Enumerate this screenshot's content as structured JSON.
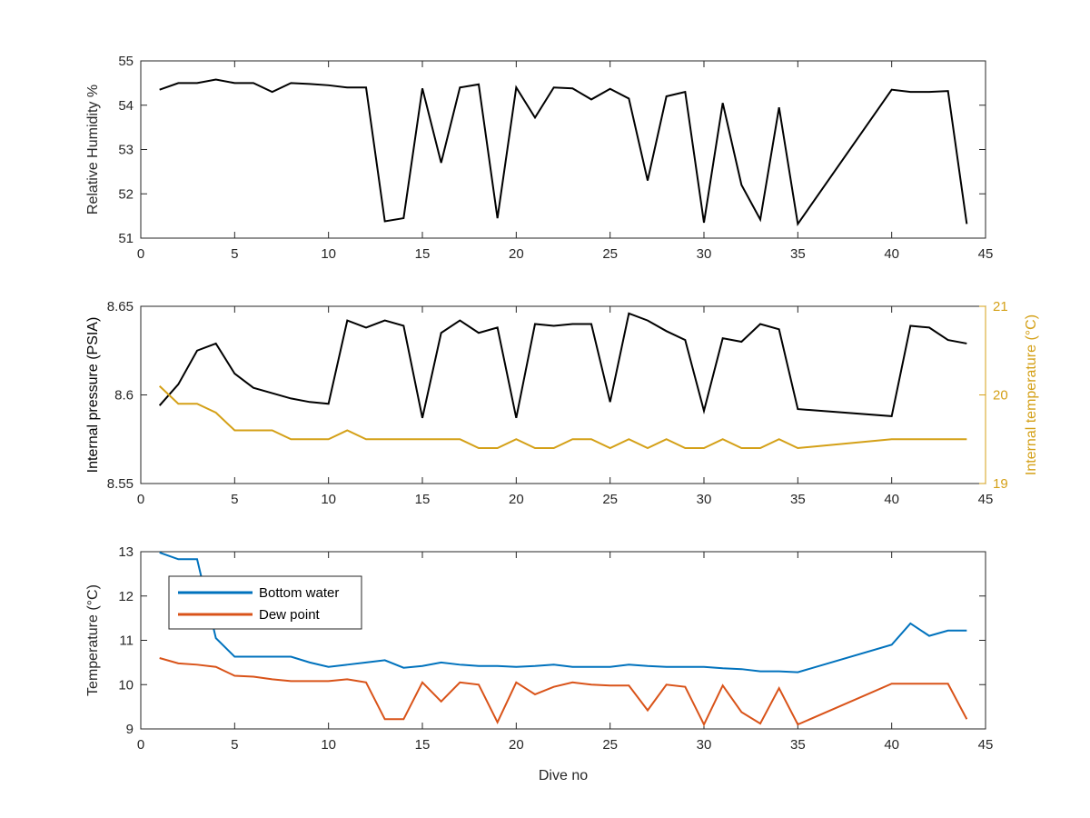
{
  "chart_data": [
    {
      "type": "line",
      "xlabel": "",
      "ylabel": "Relative Humidity %",
      "xlim": [
        0,
        45
      ],
      "ylim": [
        51,
        55
      ],
      "xticks": [
        "0",
        "5",
        "10",
        "15",
        "20",
        "25",
        "30",
        "35",
        "40",
        "45"
      ],
      "yticks": [
        "51",
        "52",
        "53",
        "54",
        "55"
      ],
      "grid": false,
      "series": [
        {
          "color": "#000000",
          "x": [
            1,
            2,
            3,
            4,
            5,
            6,
            7,
            8,
            9,
            10,
            11,
            12,
            13,
            14,
            15,
            16,
            17,
            18,
            19,
            20,
            21,
            22,
            23,
            24,
            25,
            26,
            27,
            28,
            29,
            30,
            31,
            32,
            33,
            34,
            35,
            40,
            41,
            42,
            43,
            44
          ],
          "y": [
            54.35,
            54.5,
            54.5,
            54.58,
            54.5,
            54.5,
            54.3,
            54.5,
            54.48,
            54.45,
            54.4,
            54.4,
            51.38,
            51.45,
            54.38,
            52.7,
            54.4,
            54.47,
            51.45,
            54.4,
            53.72,
            54.4,
            54.38,
            54.13,
            54.37,
            54.15,
            52.3,
            54.2,
            54.3,
            51.35,
            54.05,
            52.2,
            51.42,
            53.95,
            51.32,
            54.35,
            54.3,
            54.3,
            54.32,
            51.32
          ]
        }
      ]
    },
    {
      "type": "line",
      "xlabel": "",
      "ylabel": "Internal pressure (PSIA)",
      "ylabel_right": "Internal temperature (°C)",
      "xlim": [
        0,
        45
      ],
      "ylim": [
        8.55,
        8.65
      ],
      "ylim_right": [
        19,
        21
      ],
      "xticks": [
        "0",
        "5",
        "10",
        "15",
        "20",
        "25",
        "30",
        "35",
        "40",
        "45"
      ],
      "yticks": [
        "8.55",
        "8.6",
        "8.65"
      ],
      "yticks_right": [
        "19",
        "20",
        "21"
      ],
      "right_axis_color": "#D4A017",
      "grid": false,
      "series": [
        {
          "axis": "left",
          "color": "#000000",
          "x": [
            1,
            2,
            3,
            4,
            5,
            6,
            7,
            8,
            9,
            10,
            11,
            12,
            13,
            14,
            15,
            16,
            17,
            18,
            19,
            20,
            21,
            22,
            23,
            24,
            25,
            26,
            27,
            28,
            29,
            30,
            31,
            32,
            33,
            34,
            35,
            40,
            41,
            42,
            43,
            44
          ],
          "y": [
            8.594,
            8.606,
            8.625,
            8.629,
            8.612,
            8.604,
            8.601,
            8.598,
            8.596,
            8.595,
            8.642,
            8.638,
            8.642,
            8.639,
            8.587,
            8.635,
            8.642,
            8.635,
            8.638,
            8.587,
            8.64,
            8.639,
            8.64,
            8.64,
            8.596,
            8.646,
            8.642,
            8.636,
            8.631,
            8.591,
            8.632,
            8.63,
            8.64,
            8.637,
            8.592,
            8.588,
            8.639,
            8.638,
            8.631,
            8.629
          ]
        },
        {
          "axis": "right",
          "color": "#D4A017",
          "x": [
            1,
            2,
            3,
            4,
            5,
            6,
            7,
            8,
            9,
            10,
            11,
            12,
            13,
            14,
            15,
            16,
            17,
            18,
            19,
            20,
            21,
            22,
            23,
            24,
            25,
            26,
            27,
            28,
            29,
            30,
            31,
            32,
            33,
            34,
            35,
            40,
            41,
            42,
            43,
            44
          ],
          "y": [
            20.1,
            19.9,
            19.9,
            19.8,
            19.6,
            19.6,
            19.6,
            19.5,
            19.5,
            19.5,
            19.6,
            19.5,
            19.5,
            19.5,
            19.5,
            19.5,
            19.5,
            19.4,
            19.4,
            19.5,
            19.4,
            19.4,
            19.5,
            19.5,
            19.4,
            19.5,
            19.4,
            19.5,
            19.4,
            19.4,
            19.5,
            19.4,
            19.4,
            19.5,
            19.4,
            19.5,
            19.5,
            19.5,
            19.5,
            19.5
          ]
        }
      ]
    },
    {
      "type": "line",
      "xlabel": "Dive no",
      "ylabel": "Temperature (°C)",
      "xlim": [
        0,
        45
      ],
      "ylim": [
        9,
        13
      ],
      "xticks": [
        "0",
        "5",
        "10",
        "15",
        "20",
        "25",
        "30",
        "35",
        "40",
        "45"
      ],
      "yticks": [
        "9",
        "10",
        "11",
        "12",
        "13"
      ],
      "grid": false,
      "legend": "top-left",
      "series": [
        {
          "name": "Bottom water",
          "color": "#0072BD",
          "x": [
            1,
            2,
            3,
            4,
            5,
            6,
            7,
            8,
            9,
            10,
            11,
            12,
            13,
            14,
            15,
            16,
            17,
            18,
            19,
            20,
            21,
            22,
            23,
            24,
            25,
            26,
            27,
            28,
            29,
            30,
            31,
            32,
            33,
            34,
            35,
            40,
            41,
            42,
            43,
            44
          ],
          "y": [
            12.98,
            12.83,
            12.83,
            11.05,
            10.63,
            10.63,
            10.63,
            10.63,
            10.5,
            10.4,
            10.45,
            10.5,
            10.55,
            10.38,
            10.42,
            10.5,
            10.45,
            10.42,
            10.42,
            10.4,
            10.42,
            10.45,
            10.4,
            10.4,
            10.4,
            10.45,
            10.42,
            10.4,
            10.4,
            10.4,
            10.37,
            10.35,
            10.3,
            10.3,
            10.28,
            10.9,
            11.38,
            11.1,
            11.22,
            11.22
          ]
        },
        {
          "name": "Dew point",
          "color": "#D95319",
          "x": [
            1,
            2,
            3,
            4,
            5,
            6,
            7,
            8,
            9,
            10,
            11,
            12,
            13,
            14,
            15,
            16,
            17,
            18,
            19,
            20,
            21,
            22,
            23,
            24,
            25,
            26,
            27,
            28,
            29,
            30,
            31,
            32,
            33,
            34,
            35,
            40,
            41,
            42,
            43,
            44
          ],
          "y": [
            10.6,
            10.48,
            10.45,
            10.4,
            10.2,
            10.18,
            10.12,
            10.08,
            10.08,
            10.08,
            10.12,
            10.05,
            9.22,
            9.22,
            10.05,
            9.62,
            10.05,
            10.0,
            9.15,
            10.05,
            9.78,
            9.95,
            10.05,
            10.0,
            9.98,
            9.98,
            9.42,
            10.0,
            9.95,
            9.1,
            9.98,
            9.38,
            9.12,
            9.92,
            9.1,
            10.02,
            10.02,
            10.02,
            10.02,
            9.22
          ]
        }
      ]
    }
  ]
}
